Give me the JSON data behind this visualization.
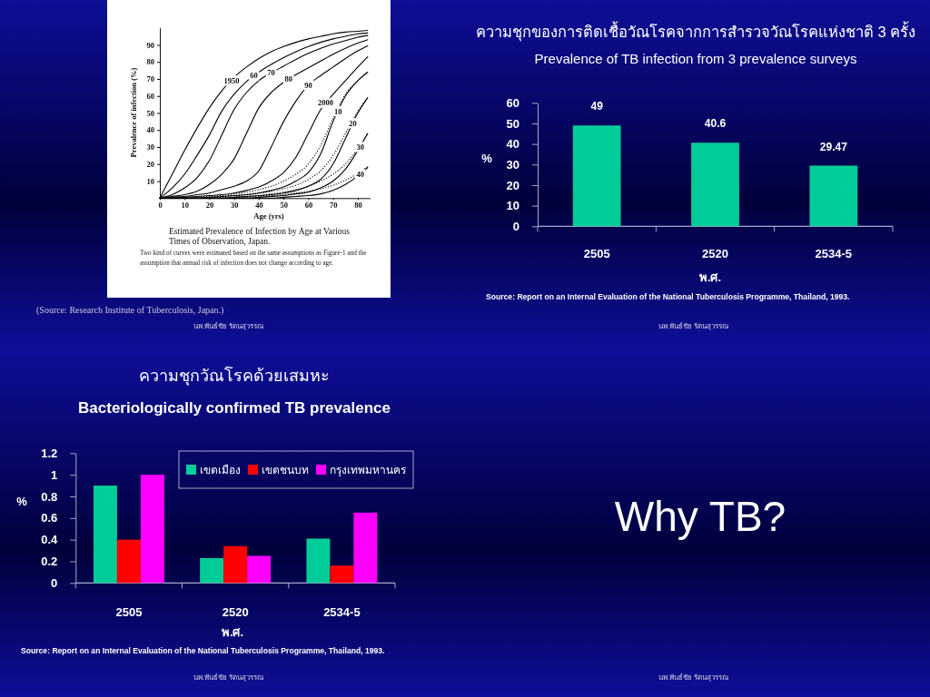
{
  "chart_data": [
    {
      "type": "line",
      "title": "Estimated Prevalence of Infection by Age at Various Times of Observation, Japan.",
      "xlabel": "Age (yrs)",
      "ylabel": "Prevalence of infection (%)",
      "x": [
        0,
        5,
        10,
        15,
        20,
        25,
        30,
        35,
        40,
        45,
        50,
        55,
        60,
        65,
        70,
        75,
        80,
        84
      ],
      "series": [
        {
          "color": "#000000",
          "values": [
            0,
            14,
            28,
            41,
            53,
            63,
            71,
            77,
            82,
            86,
            89,
            91.5,
            93.5,
            95,
            96.5,
            97.5,
            98,
            98.5
          ]
        },
        {
          "color": "#000000",
          "values": [
            0,
            6,
            14,
            25,
            37,
            51,
            61,
            68.5,
            74,
            78.5,
            82.5,
            86,
            89,
            91.5,
            93.5,
            95,
            96.5,
            97
          ]
        },
        {
          "color": "#000000",
          "values": [
            0,
            2,
            6,
            12,
            22,
            37,
            52,
            62,
            69,
            73.5,
            77.5,
            81.5,
            85,
            88,
            90.5,
            92.5,
            94.5,
            95.5
          ]
        },
        {
          "color": "#000000",
          "values": [
            0,
            1,
            2,
            4,
            8,
            14,
            23,
            38,
            53,
            62,
            68,
            72.5,
            76.5,
            80.5,
            84.5,
            88,
            91,
            93
          ]
        },
        {
          "color": "#000000",
          "values": [
            0,
            0.5,
            1,
            2,
            3,
            5,
            7,
            10,
            16,
            30,
            45,
            57,
            66.5,
            72,
            77,
            82,
            86.5,
            89.5
          ]
        },
        {
          "color": "#000000",
          "values": [
            0,
            0,
            0.5,
            1,
            1.5,
            2,
            3,
            4.5,
            6.5,
            10,
            15,
            24,
            38,
            52,
            61,
            69,
            77,
            83
          ]
        },
        {
          "color": "#000000",
          "values": [
            0,
            0,
            0,
            0,
            0.5,
            1,
            1.5,
            2,
            3,
            4.5,
            6.5,
            10,
            15,
            26,
            45,
            60,
            69,
            74
          ]
        },
        {
          "color": "#000000",
          "values": [
            0,
            0,
            0,
            0,
            0,
            0,
            0.5,
            1,
            1.5,
            2,
            3,
            4.5,
            7,
            11,
            20,
            35,
            50,
            59
          ]
        },
        {
          "color": "#000000",
          "values": [
            0,
            0,
            0,
            0,
            0,
            0,
            0,
            0,
            0.5,
            1,
            1.5,
            2.5,
            3.5,
            6,
            10,
            17,
            28,
            38
          ]
        },
        {
          "color": "#000000",
          "values": [
            0,
            0,
            0,
            0,
            0,
            0,
            0,
            0,
            0,
            0,
            0.5,
            1,
            1.5,
            2.5,
            4.5,
            8,
            13,
            18
          ]
        },
        {
          "color": "#000000",
          "line_style": "dotted",
          "values": [
            0,
            0,
            0,
            0.5,
            1,
            1.5,
            2.5,
            3.5,
            5,
            7,
            10,
            14,
            20,
            31,
            47,
            61,
            69,
            74
          ]
        },
        {
          "color": "#000000",
          "line_style": "dotted",
          "values": [
            0,
            0,
            0,
            0,
            0.5,
            1,
            1.5,
            2,
            3,
            4,
            5.5,
            7.5,
            11,
            16,
            25,
            38,
            51,
            59
          ]
        },
        {
          "color": "#000000",
          "line_style": "dotted",
          "values": [
            0,
            0,
            0,
            0,
            0,
            0,
            0.5,
            1,
            1.5,
            2.5,
            3.5,
            5,
            7,
            10,
            14,
            20,
            29,
            38
          ]
        },
        {
          "color": "#000000",
          "line_style": "dotted",
          "values": [
            0,
            0,
            0,
            0,
            0,
            0,
            0,
            0.5,
            1,
            1.5,
            2,
            3,
            4,
            5.5,
            7.5,
            10.5,
            14.5,
            18.5
          ]
        }
      ],
      "xlim": [
        0,
        85
      ],
      "ylim": [
        0,
        100
      ],
      "xticks": [
        0,
        10,
        20,
        30,
        40,
        50,
        60,
        70,
        80
      ],
      "yticks": [
        10,
        20,
        30,
        40,
        50,
        60,
        70,
        80,
        90
      ],
      "annotations": [
        {
          "text": "1950",
          "x": 29,
          "y": 69
        },
        {
          "text": "60",
          "x": 38,
          "y": 72
        },
        {
          "text": "70",
          "x": 45,
          "y": 73.5
        },
        {
          "text": "80",
          "x": 52,
          "y": 70
        },
        {
          "text": "90",
          "x": 60,
          "y": 66.5
        },
        {
          "text": "2000",
          "x": 67,
          "y": 56
        },
        {
          "text": "10",
          "x": 72,
          "y": 51
        },
        {
          "text": "20",
          "x": 78,
          "y": 44
        },
        {
          "text": "30",
          "x": 81,
          "y": 30
        },
        {
          "text": "40",
          "x": 81,
          "y": 14
        },
        "Two kind of curves were estimated based on the same assumptions as Figure-1 and the assumption that annual risk of infection does not change according to age.",
        "(Source: Research Institute of Tuberculosis, Japan.)",
        "นพ.พันธ์ชัย รัตนสุวรรณ"
      ]
    },
    {
      "type": "bar",
      "title": "ความชุกของการติดเชื้อวัณโรคจากการสำรวจวัณโรคแห่งชาติ 3 ครั้ง",
      "subtitle": "Prevalence of TB infection from 3 prevalence surveys",
      "categories": [
        "2505",
        "2520",
        "2534-5"
      ],
      "values": [
        49,
        40.6,
        29.47
      ],
      "color": "#00cc99",
      "ylim": [
        0,
        60
      ],
      "yticks": [
        0,
        10,
        20,
        30,
        40,
        50,
        60
      ],
      "xlabel": "พ.ศ.",
      "ylabel": "%",
      "data_labels": true,
      "annotations": [
        "Source: Report on an Internal Evaluation of the National Tuberculosis Programme, Thailand, 1993.",
        "นพ.พันธ์ชัย รัตนสุวรรณ"
      ]
    },
    {
      "type": "bar",
      "title": "ความชุกวัณโรคด้วยเสมหะ",
      "subtitle": "Bacteriologically confirmed TB prevalence",
      "categories": [
        "2505",
        "2520",
        "2534-5"
      ],
      "series": [
        {
          "name": "เขตเมือง",
          "color": "#00cc99",
          "values": [
            0.9,
            0.23,
            0.41
          ]
        },
        {
          "name": "เขตชนบท",
          "color": "#ff0000",
          "values": [
            0.4,
            0.34,
            0.16
          ]
        },
        {
          "name": "กรุงเทพมหานคร",
          "color": "#ff00ff",
          "values": [
            1,
            0.25,
            0.65
          ]
        }
      ],
      "ylim": [
        0,
        1.2
      ],
      "yticks": [
        0,
        0.2,
        0.4,
        0.6,
        0.8,
        1,
        1.2
      ],
      "xlabel": "พ.ศ.",
      "ylabel": "%",
      "legend": "top right",
      "annotations": [
        "Source: Report on an Internal Evaluation of the National Tuberculosis Programme, Thailand, 1993.",
        "นพ.พันธ์ชัย รัตนสุวรรณ"
      ]
    },
    {
      "type": "other",
      "title": "Why TB?",
      "annotations": [
        "นพ.พันธ์ชัย รัตนสุวรรณ"
      ]
    }
  ]
}
